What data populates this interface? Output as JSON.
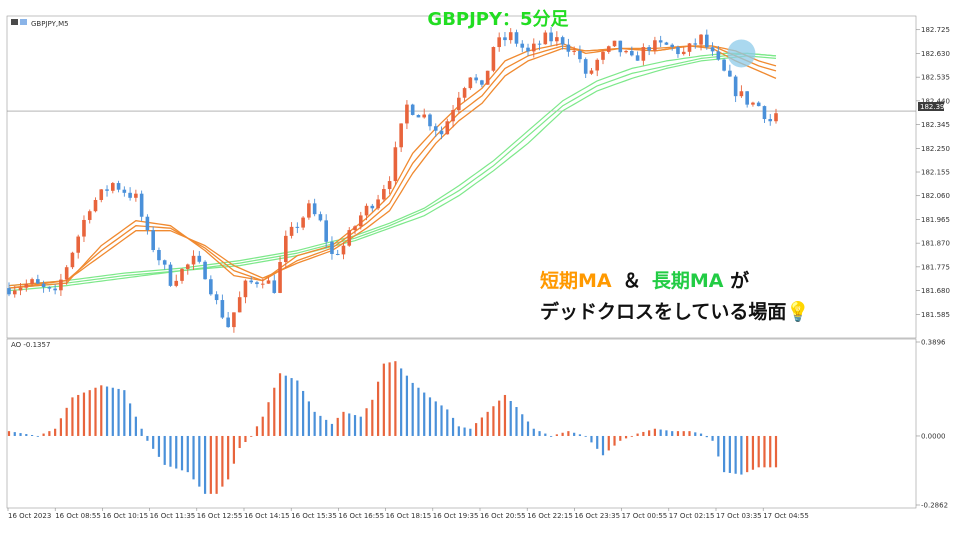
{
  "chart_header": {
    "symbol": "GBPJPY,M5",
    "title": "GBPJPY：5分足"
  },
  "annotation": {
    "line1_short": "短期MA",
    "line1_amp": "＆",
    "line1_long": "長期MA",
    "line1_tail": "が",
    "line2": "デッドクロスをしている場面💡",
    "colors": {
      "short": "#ff9900",
      "long": "#22cc44",
      "text": "#111111"
    }
  },
  "colors": {
    "bull": "#e8643c",
    "bear": "#4a90d9",
    "short_ma": "#f08a30",
    "long_ma": "#7de88a",
    "highlight": "#8ecbea",
    "grid": "#c8c8c8",
    "title": "#22dd22"
  },
  "chart_data": [
    {
      "type": "candlestick",
      "title": "",
      "symbol": "GBPJPY,M5",
      "ylim": [
        181.49,
        182.78
      ],
      "y_ticks": [
        "182.725",
        "182.630",
        "182.535",
        "182.440",
        "182.345",
        "182.250",
        "182.155",
        "182.060",
        "181.965",
        "181.870",
        "181.775",
        "181.680",
        "181.585"
      ],
      "current_price": "182.399",
      "x_ticks": [
        "16 Oct 2023",
        "16 Oct 08:55",
        "16 Oct 10:15",
        "16 Oct 11:35",
        "16 Oct 12:55",
        "16 Oct 14:15",
        "16 Oct 15:35",
        "16 Oct 16:55",
        "16 Oct 18:15",
        "16 Oct 19:35",
        "16 Oct 20:55",
        "16 Oct 22:15",
        "16 Oct 23:35",
        "17 Oct 00:55",
        "17 Oct 02:15",
        "17 Oct 03:35",
        "17 Oct 04:55"
      ],
      "close_path": [
        [
          0,
          181.69
        ],
        [
          4,
          181.71
        ],
        [
          8,
          181.66
        ],
        [
          10,
          181.78
        ],
        [
          14,
          182.02
        ],
        [
          18,
          182.11
        ],
        [
          22,
          182.05
        ],
        [
          24,
          181.9
        ],
        [
          28,
          181.72
        ],
        [
          32,
          181.8
        ],
        [
          34,
          181.75
        ],
        [
          36,
          181.63
        ],
        [
          38,
          181.54
        ],
        [
          41,
          181.7
        ],
        [
          44,
          181.73
        ],
        [
          46,
          181.69
        ],
        [
          48,
          181.88
        ],
        [
          52,
          182.01
        ],
        [
          54,
          181.95
        ],
        [
          56,
          181.82
        ],
        [
          58,
          181.86
        ],
        [
          61,
          181.98
        ],
        [
          64,
          182.06
        ],
        [
          66,
          182.14
        ],
        [
          69,
          182.42
        ],
        [
          72,
          182.38
        ],
        [
          75,
          182.31
        ],
        [
          78,
          182.47
        ],
        [
          80,
          182.55
        ],
        [
          82,
          182.48
        ],
        [
          84,
          182.66
        ],
        [
          87,
          182.7
        ],
        [
          90,
          182.63
        ],
        [
          93,
          182.69
        ],
        [
          96,
          182.68
        ],
        [
          99,
          182.61
        ],
        [
          100,
          182.53
        ],
        [
          102,
          182.6
        ],
        [
          105,
          182.66
        ],
        [
          108,
          182.6
        ],
        [
          111,
          182.66
        ],
        [
          114,
          182.66
        ],
        [
          117,
          182.63
        ],
        [
          120,
          182.69
        ],
        [
          122,
          182.62
        ],
        [
          124,
          182.55
        ],
        [
          126,
          182.48
        ],
        [
          128,
          182.44
        ],
        [
          130,
          182.42
        ],
        [
          132,
          182.36
        ],
        [
          133,
          182.39
        ]
      ],
      "short_ma": [
        [
          [
            0,
            181.69
          ],
          [
            10,
            181.71
          ],
          [
            16,
            181.86
          ],
          [
            22,
            181.96
          ],
          [
            28,
            181.94
          ],
          [
            34,
            181.84
          ],
          [
            39,
            181.74
          ],
          [
            44,
            181.72
          ],
          [
            50,
            181.82
          ],
          [
            56,
            181.86
          ],
          [
            62,
            181.97
          ],
          [
            66,
            182.06
          ],
          [
            70,
            182.23
          ],
          [
            74,
            182.33
          ],
          [
            78,
            182.42
          ],
          [
            82,
            182.49
          ],
          [
            86,
            182.6
          ],
          [
            90,
            182.64
          ],
          [
            96,
            182.67
          ],
          [
            100,
            182.63
          ],
          [
            106,
            182.65
          ],
          [
            112,
            182.65
          ],
          [
            118,
            182.66
          ],
          [
            122,
            182.65
          ],
          [
            126,
            182.6
          ],
          [
            130,
            182.56
          ],
          [
            133,
            182.53
          ]
        ],
        [
          [
            0,
            181.69
          ],
          [
            10,
            181.72
          ],
          [
            16,
            181.84
          ],
          [
            22,
            181.94
          ],
          [
            28,
            181.93
          ],
          [
            34,
            181.85
          ],
          [
            39,
            181.76
          ],
          [
            44,
            181.72
          ],
          [
            50,
            181.8
          ],
          [
            56,
            181.85
          ],
          [
            62,
            181.95
          ],
          [
            66,
            182.03
          ],
          [
            70,
            182.19
          ],
          [
            74,
            182.3
          ],
          [
            78,
            182.39
          ],
          [
            82,
            182.46
          ],
          [
            86,
            182.57
          ],
          [
            90,
            182.62
          ],
          [
            96,
            182.66
          ],
          [
            100,
            182.64
          ],
          [
            106,
            182.65
          ],
          [
            112,
            182.64
          ],
          [
            118,
            182.66
          ],
          [
            122,
            182.66
          ],
          [
            126,
            182.62
          ],
          [
            130,
            182.58
          ],
          [
            133,
            182.56
          ]
        ],
        [
          [
            0,
            181.7
          ],
          [
            10,
            181.72
          ],
          [
            16,
            181.82
          ],
          [
            22,
            181.92
          ],
          [
            28,
            181.92
          ],
          [
            34,
            181.86
          ],
          [
            39,
            181.78
          ],
          [
            44,
            181.73
          ],
          [
            50,
            181.79
          ],
          [
            56,
            181.84
          ],
          [
            62,
            181.93
          ],
          [
            66,
            182.0
          ],
          [
            70,
            182.15
          ],
          [
            74,
            182.27
          ],
          [
            78,
            182.36
          ],
          [
            82,
            182.43
          ],
          [
            86,
            182.54
          ],
          [
            90,
            182.6
          ],
          [
            96,
            182.65
          ],
          [
            100,
            182.64
          ],
          [
            106,
            182.65
          ],
          [
            112,
            182.64
          ],
          [
            118,
            182.66
          ],
          [
            122,
            182.66
          ],
          [
            126,
            182.64
          ],
          [
            130,
            182.6
          ],
          [
            133,
            182.58
          ]
        ]
      ],
      "long_ma": [
        [
          [
            0,
            181.68
          ],
          [
            10,
            181.7
          ],
          [
            20,
            181.73
          ],
          [
            30,
            181.76
          ],
          [
            40,
            181.78
          ],
          [
            50,
            181.82
          ],
          [
            60,
            181.88
          ],
          [
            66,
            181.93
          ],
          [
            72,
            181.98
          ],
          [
            78,
            182.06
          ],
          [
            84,
            182.16
          ],
          [
            90,
            182.27
          ],
          [
            96,
            182.4
          ],
          [
            102,
            182.48
          ],
          [
            108,
            182.53
          ],
          [
            114,
            182.57
          ],
          [
            120,
            182.6
          ],
          [
            124,
            182.61
          ],
          [
            128,
            182.62
          ],
          [
            133,
            182.61
          ]
        ],
        [
          [
            0,
            181.69
          ],
          [
            10,
            181.71
          ],
          [
            20,
            181.74
          ],
          [
            30,
            181.76
          ],
          [
            40,
            181.79
          ],
          [
            50,
            181.83
          ],
          [
            60,
            181.89
          ],
          [
            66,
            181.94
          ],
          [
            72,
            182.0
          ],
          [
            78,
            182.08
          ],
          [
            84,
            182.18
          ],
          [
            90,
            182.3
          ],
          [
            96,
            182.42
          ],
          [
            102,
            182.5
          ],
          [
            108,
            182.55
          ],
          [
            114,
            182.58
          ],
          [
            120,
            182.61
          ],
          [
            124,
            182.62
          ],
          [
            128,
            182.63
          ],
          [
            133,
            182.62
          ]
        ],
        [
          [
            0,
            181.7
          ],
          [
            10,
            181.72
          ],
          [
            20,
            181.75
          ],
          [
            30,
            181.77
          ],
          [
            40,
            181.8
          ],
          [
            50,
            181.84
          ],
          [
            60,
            181.9
          ],
          [
            66,
            181.95
          ],
          [
            72,
            182.01
          ],
          [
            78,
            182.1
          ],
          [
            84,
            182.2
          ],
          [
            90,
            182.32
          ],
          [
            96,
            182.44
          ],
          [
            102,
            182.52
          ],
          [
            108,
            182.57
          ],
          [
            114,
            182.6
          ],
          [
            120,
            182.62
          ],
          [
            124,
            182.63
          ],
          [
            128,
            182.63
          ],
          [
            133,
            182.62
          ]
        ]
      ],
      "highlight_bar": 127,
      "highlight_price": 182.63
    },
    {
      "type": "bar",
      "title": "",
      "label": "AO -0.1357",
      "ylim": [
        -0.2862,
        0.3896
      ],
      "y_ticks": [
        "0.3896",
        "0.0000",
        "-0.2862"
      ],
      "envelope": [
        [
          0,
          0.02
        ],
        [
          5,
          0.0
        ],
        [
          8,
          0.03
        ],
        [
          11,
          0.16
        ],
        [
          16,
          0.21
        ],
        [
          20,
          0.19
        ],
        [
          22,
          0.08
        ],
        [
          24,
          -0.02
        ],
        [
          27,
          -0.12
        ],
        [
          31,
          -0.15
        ],
        [
          34,
          -0.24
        ],
        [
          36,
          -0.24
        ],
        [
          38,
          -0.18
        ],
        [
          40,
          -0.05
        ],
        [
          42,
          0.0
        ],
        [
          44,
          0.08
        ],
        [
          47,
          0.26
        ],
        [
          50,
          0.23
        ],
        [
          53,
          0.1
        ],
        [
          56,
          0.05
        ],
        [
          58,
          0.1
        ],
        [
          61,
          0.08
        ],
        [
          63,
          0.15
        ],
        [
          65,
          0.3
        ],
        [
          67,
          0.31
        ],
        [
          70,
          0.22
        ],
        [
          73,
          0.16
        ],
        [
          76,
          0.11
        ],
        [
          78,
          0.04
        ],
        [
          80,
          0.03
        ],
        [
          83,
          0.1
        ],
        [
          86,
          0.17
        ],
        [
          88,
          0.12
        ],
        [
          91,
          0.03
        ],
        [
          94,
          0.0
        ],
        [
          97,
          0.02
        ],
        [
          100,
          0.0
        ],
        [
          103,
          -0.08
        ],
        [
          106,
          -0.02
        ],
        [
          109,
          0.01
        ],
        [
          112,
          0.03
        ],
        [
          115,
          0.02
        ],
        [
          118,
          0.02
        ],
        [
          120,
          0.01
        ],
        [
          122,
          -0.02
        ],
        [
          124,
          -0.15
        ],
        [
          127,
          -0.16
        ],
        [
          130,
          -0.13
        ],
        [
          133,
          -0.13
        ]
      ]
    }
  ]
}
